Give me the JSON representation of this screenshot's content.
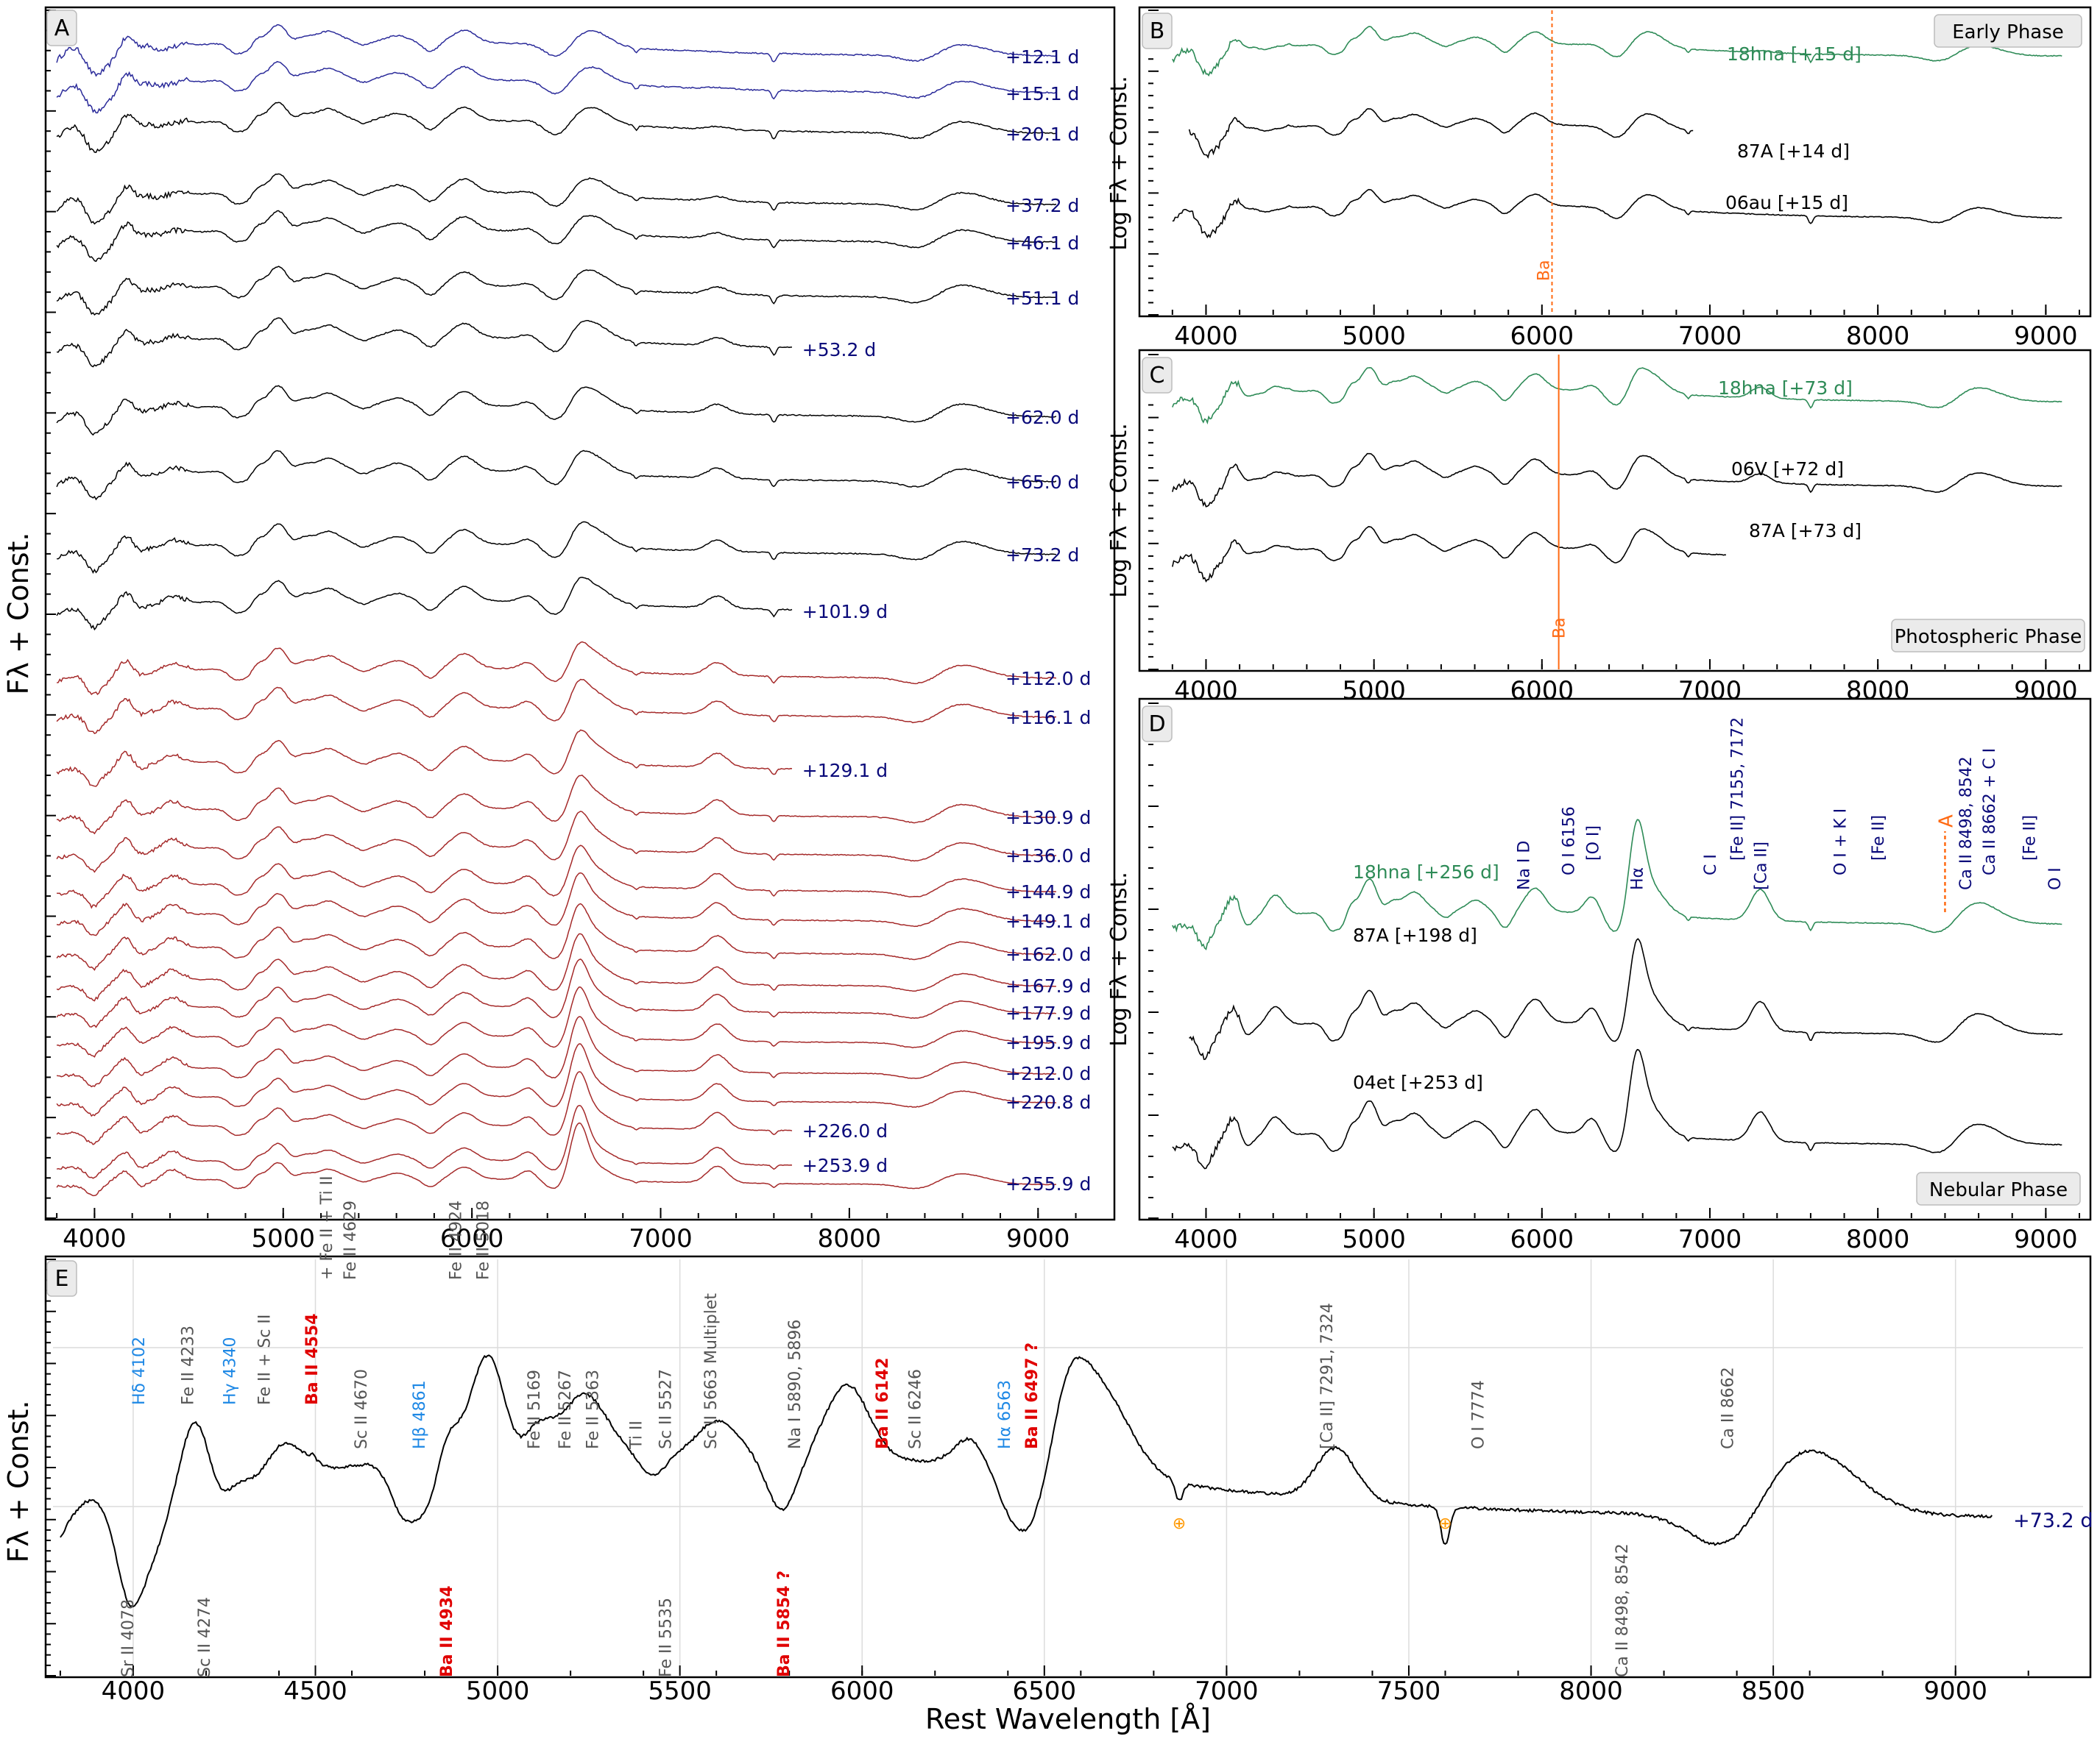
{
  "chart_data": [
    {
      "panel": "A",
      "type": "line",
      "xlabel": "",
      "ylabel": "Fλ + Const.",
      "xlim": [
        3780,
        9350
      ],
      "xticks": [
        4000,
        5000,
        6000,
        7000,
        8000,
        9000
      ],
      "series": [
        {
          "epoch": "+12.1 d",
          "color": "#2b2b9a",
          "xmax": 9100
        },
        {
          "epoch": "+15.1 d",
          "color": "#2b2b9a",
          "xmax": 9100
        },
        {
          "epoch": "+20.1 d",
          "color": "#000000",
          "xmax": 9100
        },
        {
          "epoch": "+37.2 d",
          "color": "#000000",
          "xmax": 9100
        },
        {
          "epoch": "+46.1 d",
          "color": "#000000",
          "xmax": 9100
        },
        {
          "epoch": "+51.1 d",
          "color": "#000000",
          "xmax": 9100
        },
        {
          "epoch": "+53.2 d",
          "color": "#000000",
          "xmax": 7700
        },
        {
          "epoch": "+62.0 d",
          "color": "#000000",
          "xmax": 9100
        },
        {
          "epoch": "+65.0 d",
          "color": "#000000",
          "xmax": 9100
        },
        {
          "epoch": "+73.2 d",
          "color": "#000000",
          "xmax": 9100
        },
        {
          "epoch": "+101.9 d",
          "color": "#000000",
          "xmax": 7700
        },
        {
          "epoch": "+112.0 d",
          "color": "#a52a2a",
          "xmax": 9100
        },
        {
          "epoch": "+116.1 d",
          "color": "#a52a2a",
          "xmax": 9100
        },
        {
          "epoch": "+129.1 d",
          "color": "#a52a2a",
          "xmax": 7700
        },
        {
          "epoch": "+130.9 d",
          "color": "#a52a2a",
          "xmax": 9100
        },
        {
          "epoch": "+136.0 d",
          "color": "#a52a2a",
          "xmax": 9100
        },
        {
          "epoch": "+144.9 d",
          "color": "#a52a2a",
          "xmax": 9100
        },
        {
          "epoch": "+149.1 d",
          "color": "#a52a2a",
          "xmax": 9100
        },
        {
          "epoch": "+162.0 d",
          "color": "#a52a2a",
          "xmax": 9100
        },
        {
          "epoch": "+167.9 d",
          "color": "#a52a2a",
          "xmax": 9100
        },
        {
          "epoch": "+177.9 d",
          "color": "#a52a2a",
          "xmax": 9100
        },
        {
          "epoch": "+195.9 d",
          "color": "#a52a2a",
          "xmax": 9100
        },
        {
          "epoch": "+212.0 d",
          "color": "#a52a2a",
          "xmax": 9100
        },
        {
          "epoch": "+220.8 d",
          "color": "#a52a2a",
          "xmax": 9100
        },
        {
          "epoch": "+226.0 d",
          "color": "#a52a2a",
          "xmax": 7700
        },
        {
          "epoch": "+253.9 d",
          "color": "#a52a2a",
          "xmax": 7700
        },
        {
          "epoch": "+255.9 d",
          "color": "#a52a2a",
          "xmax": 9100
        }
      ]
    },
    {
      "panel": "B",
      "type": "line",
      "phase": "Early Phase",
      "ylabel": "Log Fλ + Const.",
      "xlim": [
        3700,
        9200
      ],
      "xticks": [
        4000,
        5000,
        6000,
        7000,
        8000,
        9000
      ],
      "marker": {
        "label": "Ba",
        "x": 6060
      },
      "series": [
        {
          "name": "18hna [+15 d]",
          "color": "#2e8b57",
          "xmin": 3800,
          "xmax": 9100
        },
        {
          "name": "87A [+14 d]",
          "color": "#000000",
          "xmin": 3900,
          "xmax": 6900
        },
        {
          "name": "06au [+15 d]",
          "color": "#000000",
          "xmin": 3800,
          "xmax": 9100
        }
      ]
    },
    {
      "panel": "C",
      "type": "line",
      "phase": "Photospheric Phase",
      "ylabel": "Log Fλ + Const.",
      "xlim": [
        3700,
        9200
      ],
      "xticks": [
        4000,
        5000,
        6000,
        7000,
        8000,
        9000
      ],
      "marker": {
        "label": "Ba",
        "x": 6100
      },
      "series": [
        {
          "name": "18hna [+73 d]",
          "color": "#2e8b57",
          "xmin": 3800,
          "xmax": 9100
        },
        {
          "name": "06V [+72 d]",
          "color": "#000000",
          "xmin": 3800,
          "xmax": 9100
        },
        {
          "name": "87A [+73 d]",
          "color": "#000000",
          "xmin": 3800,
          "xmax": 7100
        }
      ]
    },
    {
      "panel": "D",
      "type": "line",
      "phase": "Nebular Phase",
      "ylabel": "Log Fλ + Const.",
      "xlim": [
        3700,
        9200
      ],
      "xticks": [
        4000,
        5000,
        6000,
        7000,
        8000,
        9000
      ],
      "marker": {
        "label": "A",
        "x": 8400
      },
      "series": [
        {
          "name": "18hna [+256 d]",
          "color": "#2e8b57",
          "xmin": 3800,
          "xmax": 9100
        },
        {
          "name": "87A [+198 d]",
          "color": "#000000",
          "xmin": 3900,
          "xmax": 9100
        },
        {
          "name": "04et [+253 d]",
          "color": "#000000",
          "xmin": 3800,
          "xmax": 9100
        }
      ],
      "line_ids": [
        {
          "label": "Na I D",
          "x": 5890,
          "color": "#0a0a7a"
        },
        {
          "label": "O I 6156",
          "x": 6156,
          "color": "#0a0a7a"
        },
        {
          "label": "[O I]",
          "x": 6300,
          "color": "#0a0a7a"
        },
        {
          "label": "Hα",
          "x": 6563,
          "color": "#0a0a7a"
        },
        {
          "label": "C I",
          "x": 7000,
          "color": "#0a0a7a"
        },
        {
          "label": "[Fe II] 7155, 7172",
          "x": 7160,
          "color": "#0a0a7a"
        },
        {
          "label": "[Ca II]",
          "x": 7300,
          "color": "#0a0a7a"
        },
        {
          "label": "O I + K I",
          "x": 7774,
          "color": "#0a0a7a"
        },
        {
          "label": "[Fe II]",
          "x": 8000,
          "color": "#0a0a7a"
        },
        {
          "label": "Ca II 8498, 8542",
          "x": 8520,
          "color": "#0a0a7a"
        },
        {
          "label": "Ca II 8662 + C I",
          "x": 8662,
          "color": "#0a0a7a"
        },
        {
          "label": "[Fe II]",
          "x": 8900,
          "color": "#0a0a7a"
        },
        {
          "label": "O I",
          "x": 9050,
          "color": "#0a0a7a"
        }
      ]
    },
    {
      "panel": "E",
      "type": "line",
      "xlabel": "Rest Wavelength [Å]",
      "ylabel": "Fλ + Const.",
      "xlim": [
        3780,
        9350
      ],
      "xticks": [
        4000,
        4500,
        5000,
        5500,
        6000,
        6500,
        7000,
        7500,
        8000,
        8500,
        9000
      ],
      "series": [
        {
          "name": "+73.2 d",
          "color": "#000000"
        }
      ],
      "telluric_symbol": "⊕",
      "line_ids": [
        {
          "label": "Sr II 4078",
          "x": 4000,
          "color": "#555555",
          "pos": "low"
        },
        {
          "label": "Hδ 4102",
          "x": 4030,
          "color": "#1e88e5",
          "pos": "high"
        },
        {
          "label": "Fe II 4233",
          "x": 4165,
          "color": "#555555",
          "pos": "high"
        },
        {
          "label": "Sc II 4274",
          "x": 4210,
          "color": "#555555",
          "pos": "low"
        },
        {
          "label": "Hγ 4340",
          "x": 4280,
          "color": "#1e88e5",
          "pos": "high"
        },
        {
          "label": "Fe II + Sc II",
          "x": 4375,
          "color": "#555555",
          "pos": "high"
        },
        {
          "label": "Ba II 4554",
          "x": 4505,
          "color": "#e00000",
          "pos": "high"
        },
        {
          "label": "+ Fe II + Ti II",
          "x": 4545,
          "color": "#555555",
          "pos": "top"
        },
        {
          "label": "Fe II 4629",
          "x": 4610,
          "color": "#555555",
          "pos": "top"
        },
        {
          "label": "Sc II 4670",
          "x": 4640,
          "color": "#555555",
          "pos": "mid"
        },
        {
          "label": "Hβ 4861",
          "x": 4800,
          "color": "#1e88e5",
          "pos": "mid"
        },
        {
          "label": "Fe II 4924",
          "x": 4900,
          "color": "#555555",
          "pos": "top"
        },
        {
          "label": "Ba II 4934",
          "x": 4875,
          "color": "#e00000",
          "pos": "low"
        },
        {
          "label": "Fe II 5018",
          "x": 4975,
          "color": "#555555",
          "pos": "top"
        },
        {
          "label": "Fe II 5169",
          "x": 5115,
          "color": "#555555",
          "pos": "mid"
        },
        {
          "label": "Fe II 5267",
          "x": 5200,
          "color": "#555555",
          "pos": "mid"
        },
        {
          "label": "Fe II 5363",
          "x": 5275,
          "color": "#555555",
          "pos": "mid"
        },
        {
          "label": "Ti II",
          "x": 5395,
          "color": "#555555",
          "pos": "mid"
        },
        {
          "label": "Sc II 5527",
          "x": 5475,
          "color": "#555555",
          "pos": "mid"
        },
        {
          "label": "Fe II 5535",
          "x": 5475,
          "color": "#555555",
          "pos": "low"
        },
        {
          "label": "Sc II 5663 Multiplet",
          "x": 5600,
          "color": "#555555",
          "pos": "mid"
        },
        {
          "label": "Ba II 5854 ?",
          "x": 5800,
          "color": "#e00000",
          "pos": "low"
        },
        {
          "label": "Na I 5890, 5896",
          "x": 5830,
          "color": "#555555",
          "pos": "mid"
        },
        {
          "label": "Ba II 6142",
          "x": 6070,
          "color": "#e00000",
          "pos": "mid"
        },
        {
          "label": "Sc II 6246",
          "x": 6160,
          "color": "#555555",
          "pos": "mid"
        },
        {
          "label": "Hα 6563",
          "x": 6405,
          "color": "#1e88e5",
          "pos": "mid"
        },
        {
          "label": "Ba II 6497 ?",
          "x": 6480,
          "color": "#e00000",
          "pos": "mid"
        },
        {
          "label": "[Ca II] 7291, 7324",
          "x": 7290,
          "color": "#555555",
          "pos": "mid"
        },
        {
          "label": "O I 7774",
          "x": 7705,
          "color": "#555555",
          "pos": "mid"
        },
        {
          "label": "Ca II 8498, 8542",
          "x": 8100,
          "color": "#555555",
          "pos": "low"
        },
        {
          "label": "Ca II 8662",
          "x": 8390,
          "color": "#555555",
          "pos": "mid"
        }
      ]
    }
  ],
  "panels": {
    "A": {
      "letter": "A",
      "ylabel": "Fλ + Const."
    },
    "B": {
      "letter": "B",
      "ylabel": "Log Fλ + Const.",
      "phase": "Early Phase",
      "marker": "Ba"
    },
    "C": {
      "letter": "C",
      "ylabel": "Log Fλ + Const.",
      "phase": "Photospheric Phase",
      "marker": "Ba"
    },
    "D": {
      "letter": "D",
      "ylabel": "Log Fλ + Const.",
      "phase": "Nebular Phase",
      "marker": "A"
    },
    "E": {
      "letter": "E",
      "ylabel": "Fλ + Const.",
      "xlabel": "Rest Wavelength [Å]",
      "epoch": "+73.2 d"
    }
  },
  "colors": {
    "green": "#2e8b57",
    "navy": "#0a0a7a",
    "red": "#a52a2a",
    "blue": "#2b2b9a",
    "orange": "#ff6a13",
    "ba_red": "#e00000",
    "h_blue": "#1e88e5"
  }
}
